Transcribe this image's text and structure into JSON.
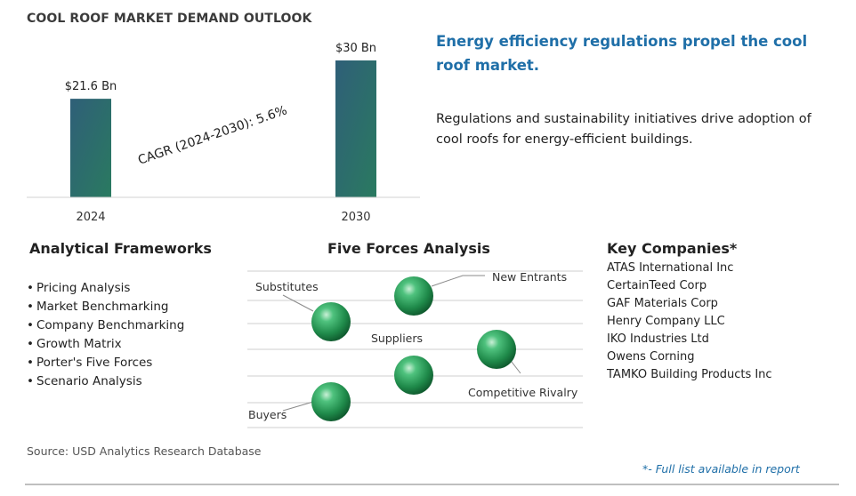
{
  "chart_data": {
    "type": "bar",
    "title": "COOL ROOF MARKET DEMAND OUTLOOK",
    "categories": [
      "2024",
      "2030"
    ],
    "values": [
      21.6,
      30
    ],
    "value_labels": [
      "$21.6 Bn",
      "$30 Bn"
    ],
    "unit": "Bn",
    "annotation": "CAGR (2024-2030):  5.6%",
    "ylim": [
      0,
      30
    ],
    "grid": false,
    "legend": "none",
    "bar_color": "#2b6f66"
  },
  "headline": "Energy efficiency regulations propel the cool roof market.",
  "summary": "Regulations and sustainability initiatives drive adoption of cool roofs for energy-efficient buildings.",
  "frameworks": {
    "title": "Analytical Frameworks",
    "bullet": "•",
    "items": [
      "Pricing Analysis",
      "Market Benchmarking",
      "Company Benchmarking",
      "Growth Matrix",
      "Porter's Five Forces",
      "Scenario Analysis"
    ]
  },
  "five_forces": {
    "title": "Five Forces Analysis",
    "forces": [
      "Substitutes",
      "New Entrants",
      "Suppliers",
      "Competitive Rivalry",
      "Buyers"
    ]
  },
  "companies": {
    "title": "Key Companies*",
    "items": [
      "ATAS International Inc",
      "CertainTeed Corp",
      "GAF Materials Corp",
      "Henry Company LLC",
      "IKO Industries Ltd",
      "Owens Corning",
      "TAMKO Building Products Inc"
    ]
  },
  "source": "Source: USD Analytics Research Database",
  "footnote": "*- Full list available in report",
  "colors": {
    "accent": "#1f6fa8",
    "sphere": "#2e9e5c",
    "bar_top": "#2f5f78",
    "bar_bottom": "#2a7a60"
  }
}
